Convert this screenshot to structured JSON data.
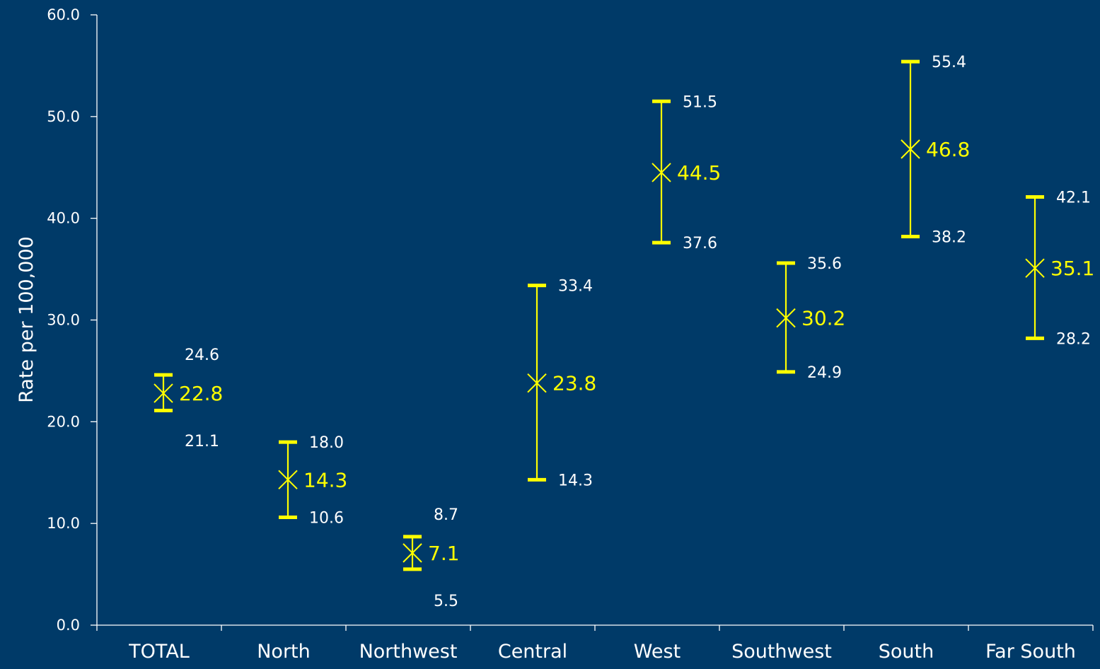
{
  "chart_data": {
    "type": "scatter",
    "ylabel": "Rate per 100,000",
    "ylim": [
      0,
      60
    ],
    "y_ticks": [
      "0.0",
      "10.0",
      "20.0",
      "30.0",
      "40.0",
      "50.0",
      "60.0"
    ],
    "y_tick_values": [
      0,
      10,
      20,
      30,
      40,
      50,
      60
    ],
    "grid": false,
    "colors": {
      "background": "#003a68",
      "axis": "#ffffff",
      "marker": "#ffff00",
      "mean_label": "#ffff00",
      "bound_label": "#ffffff"
    },
    "points": [
      {
        "category": "TOTAL",
        "value": 22.8,
        "upper": 24.6,
        "lower": 21.1,
        "value_label": "22.8",
        "upper_label": "24.6",
        "lower_label": "21.1"
      },
      {
        "category": "North",
        "value": 14.3,
        "upper": 18.0,
        "lower": 10.6,
        "value_label": "14.3",
        "upper_label": "18.0",
        "lower_label": "10.6"
      },
      {
        "category": "Northwest",
        "value": 7.1,
        "upper": 8.7,
        "lower": 5.5,
        "value_label": "7.1",
        "upper_label": "8.7",
        "lower_label": "5.5"
      },
      {
        "category": "Central",
        "value": 23.8,
        "upper": 33.4,
        "lower": 14.3,
        "value_label": "23.8",
        "upper_label": "33.4",
        "lower_label": "14.3"
      },
      {
        "category": "West",
        "value": 44.5,
        "upper": 51.5,
        "lower": 37.6,
        "value_label": "44.5",
        "upper_label": "51.5",
        "lower_label": "37.6"
      },
      {
        "category": "Southwest",
        "value": 30.2,
        "upper": 35.6,
        "lower": 24.9,
        "value_label": "30.2",
        "upper_label": "35.6",
        "lower_label": "24.9"
      },
      {
        "category": "South",
        "value": 46.8,
        "upper": 55.4,
        "lower": 38.2,
        "value_label": "46.8",
        "upper_label": "55.4",
        "lower_label": "38.2"
      },
      {
        "category": "Far South",
        "value": 35.1,
        "upper": 42.1,
        "lower": 28.2,
        "value_label": "35.1",
        "upper_label": "42.1",
        "lower_label": "28.2"
      }
    ]
  }
}
